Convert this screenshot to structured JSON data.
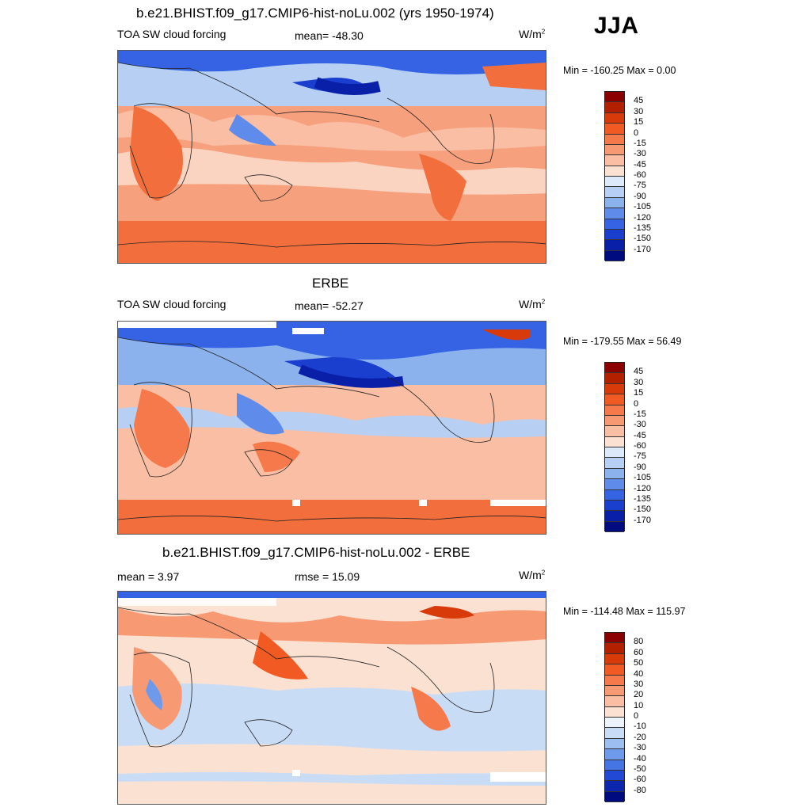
{
  "season": "JJA",
  "panels": [
    {
      "title": "b.e21.BHIST.f09_g17.CMIP6-hist-noLu.002 (yrs 1950-1974)",
      "left_label": "TOA SW cloud forcing",
      "center_label": "mean= -48.30",
      "units": "W/m",
      "units_sup": "2",
      "minmax": "Min = -160.25 Max =    0.00",
      "colorbar": {
        "labels": [
          "45",
          "30",
          "15",
          "0",
          "-15",
          "-30",
          "-45",
          "-60",
          "-75",
          "-90",
          "-105",
          "-120",
          "-135",
          "-150",
          "-170"
        ],
        "colors": [
          "#8b0000",
          "#b22000",
          "#d83a0a",
          "#f25a23",
          "#f5794a",
          "#f79a74",
          "#f9bea3",
          "#fbe1d2",
          "#dce9f8",
          "#b6cff3",
          "#8cb2ee",
          "#5f8cea",
          "#3663e3",
          "#1a3fcf",
          "#0a1fa8",
          "#000b80"
        ]
      }
    },
    {
      "title": "ERBE",
      "left_label": "TOA SW cloud forcing",
      "center_label": "mean= -52.27",
      "units": "W/m",
      "units_sup": "2",
      "minmax": "Min = -179.55 Max =  56.49",
      "colorbar": {
        "labels": [
          "45",
          "30",
          "15",
          "0",
          "-15",
          "-30",
          "-45",
          "-60",
          "-75",
          "-90",
          "-105",
          "-120",
          "-135",
          "-150",
          "-170"
        ],
        "colors": [
          "#8b0000",
          "#b22000",
          "#d83a0a",
          "#f25a23",
          "#f5794a",
          "#f79a74",
          "#f9bea3",
          "#fbe1d2",
          "#dce9f8",
          "#b6cff3",
          "#8cb2ee",
          "#5f8cea",
          "#3663e3",
          "#1a3fcf",
          "#0a1fa8",
          "#000b80"
        ]
      }
    },
    {
      "title": "b.e21.BHIST.f09_g17.CMIP6-hist-noLu.002 - ERBE",
      "left_label": "mean =   3.97",
      "center_label": "rmse =  15.09",
      "units": "W/m",
      "units_sup": "2",
      "minmax": "Min = -114.48 Max = 115.97",
      "colorbar": {
        "labels": [
          "80",
          "60",
          "50",
          "40",
          "30",
          "20",
          "10",
          "0",
          "-10",
          "-20",
          "-30",
          "-40",
          "-50",
          "-60",
          "-80"
        ],
        "colors": [
          "#8b0000",
          "#b22000",
          "#d83a0a",
          "#f25a23",
          "#f5794a",
          "#f79a74",
          "#f9bea3",
          "#fbe1d2",
          "#eef3fb",
          "#c9dcf6",
          "#9cbef0",
          "#6f9aeb",
          "#4574e5",
          "#2249d6",
          "#0c26b0",
          "#000b80"
        ]
      }
    }
  ]
}
